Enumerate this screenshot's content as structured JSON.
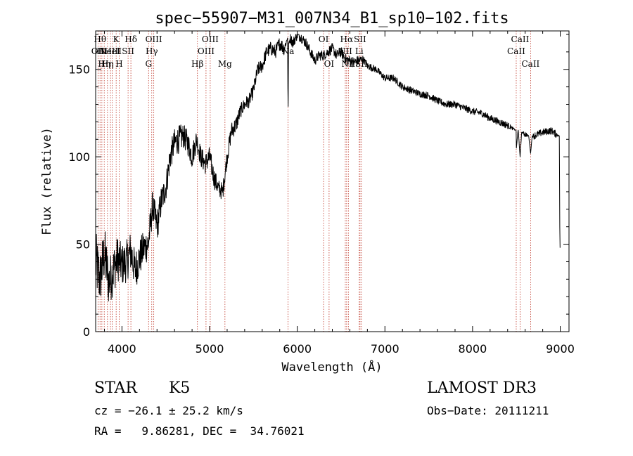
{
  "chart_data": {
    "type": "line",
    "title": "spec−55907−M31_007N34_B1_sp10−102.fits",
    "xlabel": "Wavelength (Å)",
    "ylabel": "Flux (relative)",
    "xlim": [
      3700,
      9100
    ],
    "ylim": [
      0,
      172
    ],
    "xticks": [
      4000,
      5000,
      6000,
      7000,
      8000,
      9000
    ],
    "yticks": [
      0,
      50,
      100,
      150
    ],
    "xtick_labels": [
      "4000",
      "5000",
      "6000",
      "7000",
      "8000",
      "9000"
    ],
    "ytick_labels": [
      "0",
      "50",
      "100",
      "150"
    ],
    "series": [
      {
        "name": "spectrum",
        "x": [
          3700,
          3750,
          3800,
          3850,
          3900,
          3950,
          4000,
          4050,
          4100,
          4150,
          4200,
          4250,
          4300,
          4350,
          4400,
          4450,
          4500,
          4550,
          4600,
          4650,
          4700,
          4750,
          4800,
          4850,
          4900,
          4950,
          5000,
          5050,
          5100,
          5150,
          5200,
          5250,
          5300,
          5350,
          5400,
          5450,
          5500,
          5550,
          5600,
          5650,
          5700,
          5750,
          5800,
          5850,
          5890,
          5895,
          5900,
          5920,
          5950,
          6000,
          6050,
          6100,
          6150,
          6200,
          6250,
          6300,
          6350,
          6400,
          6450,
          6500,
          6550,
          6600,
          6650,
          6700,
          6750,
          6800,
          6900,
          7000,
          7100,
          7200,
          7300,
          7400,
          7500,
          7600,
          7700,
          7800,
          7900,
          8000,
          8100,
          8200,
          8300,
          8400,
          8498,
          8500,
          8520,
          8542,
          8560,
          8600,
          8640,
          8662,
          8680,
          8700,
          8800,
          8900,
          8950,
          8990,
          8995,
          9000
        ],
        "y": [
          40,
          30,
          45,
          28,
          35,
          42,
          38,
          40,
          46,
          35,
          42,
          48,
          50,
          72,
          60,
          75,
          82,
          100,
          108,
          110,
          112,
          108,
          100,
          110,
          100,
          96,
          100,
          88,
          82,
          80,
          100,
          115,
          118,
          126,
          130,
          132,
          138,
          150,
          152,
          160,
          162,
          160,
          165,
          162,
          168,
          120,
          164,
          168,
          165,
          170,
          168,
          165,
          160,
          155,
          158,
          158,
          160,
          162,
          158,
          160,
          156,
          155,
          154,
          155,
          156,
          152,
          150,
          145,
          145,
          140,
          138,
          136,
          135,
          132,
          130,
          130,
          128,
          126,
          125,
          122,
          120,
          118,
          115,
          105,
          116,
          100,
          114,
          113,
          112,
          102,
          112,
          112,
          114,
          115,
          113,
          112,
          60,
          40
        ],
        "noise_amplitude": [
          18,
          16,
          16,
          14,
          14,
          13,
          12,
          12,
          12,
          11,
          11,
          10,
          10,
          9,
          9,
          9,
          8,
          8,
          8,
          8,
          7,
          7,
          7,
          6,
          6,
          6,
          6,
          6,
          5,
          5,
          5,
          5,
          5,
          4,
          4,
          4,
          4,
          4,
          4,
          4,
          4,
          4,
          4,
          4,
          0,
          0,
          0,
          3,
          3,
          3,
          3,
          3,
          3,
          3,
          3,
          3,
          3,
          3,
          3,
          3,
          3,
          3,
          3,
          3,
          2,
          2,
          2,
          2,
          2,
          2,
          2,
          2,
          2,
          2,
          2,
          2,
          2,
          2,
          2,
          2,
          2,
          2,
          0,
          0,
          0,
          0,
          0,
          2,
          0,
          0,
          0,
          2,
          2,
          2,
          2,
          0,
          0,
          0
        ]
      }
    ],
    "spectral_lines": [
      {
        "wavelength": 3727,
        "label": "OII",
        "row": 1
      },
      {
        "wavelength": 3750,
        "label": "Hθ",
        "row": 0
      },
      {
        "wavelength": 3771,
        "label": "Hι",
        "row": 1
      },
      {
        "wavelength": 3798,
        "label": "Hη",
        "row": 2
      },
      {
        "wavelength": 3835,
        "label": "Hη",
        "row": 2
      },
      {
        "wavelength": 3869,
        "label": "NeIII",
        "row": 1
      },
      {
        "wavelength": 3889,
        "label": "HeI",
        "row": 1
      },
      {
        "wavelength": 3934,
        "label": "K",
        "row": 0
      },
      {
        "wavelength": 3969,
        "label": "H",
        "row": 2
      },
      {
        "wavelength": 4070,
        "label": "SII",
        "row": 1
      },
      {
        "wavelength": 4102,
        "label": "Hδ",
        "row": 0
      },
      {
        "wavelength": 4304,
        "label": "G",
        "row": 2
      },
      {
        "wavelength": 4340,
        "label": "Hγ",
        "row": 1
      },
      {
        "wavelength": 4363,
        "label": "OIII",
        "row": 0
      },
      {
        "wavelength": 4861,
        "label": "Hβ",
        "row": 2
      },
      {
        "wavelength": 4959,
        "label": "OIII",
        "row": 1
      },
      {
        "wavelength": 5007,
        "label": "OIII",
        "row": 0
      },
      {
        "wavelength": 5175,
        "label": "Mg",
        "row": 2
      },
      {
        "wavelength": 5895,
        "label": "Na",
        "row": 1
      },
      {
        "wavelength": 6300,
        "label": "OI",
        "row": 0
      },
      {
        "wavelength": 6363,
        "label": "OI",
        "row": 2
      },
      {
        "wavelength": 6548,
        "label": "NII",
        "row": 1
      },
      {
        "wavelength": 6563,
        "label": "Hα",
        "row": 0
      },
      {
        "wavelength": 6583,
        "label": "NII",
        "row": 2
      },
      {
        "wavelength": 6707,
        "label": "Li",
        "row": 1
      },
      {
        "wavelength": 6716,
        "label": "SII",
        "row": 0
      },
      {
        "wavelength": 6731,
        "label": "SII",
        "row": 2
      },
      {
        "wavelength": 8498,
        "label": "CaII",
        "row": 1
      },
      {
        "wavelength": 8542,
        "label": "CaII",
        "row": 0
      },
      {
        "wavelength": 8662,
        "label": "CaII",
        "row": 2
      }
    ]
  },
  "info": {
    "object_class": "STAR",
    "subclass": "K5",
    "survey": "LAMOST DR3",
    "redshift_line": "cz = −26.1 ± 25.2 km/s",
    "obs_date_line": "Obs−Date: 20111211",
    "coords_line": "RA =   9.86281, DEC =  34.76021"
  }
}
